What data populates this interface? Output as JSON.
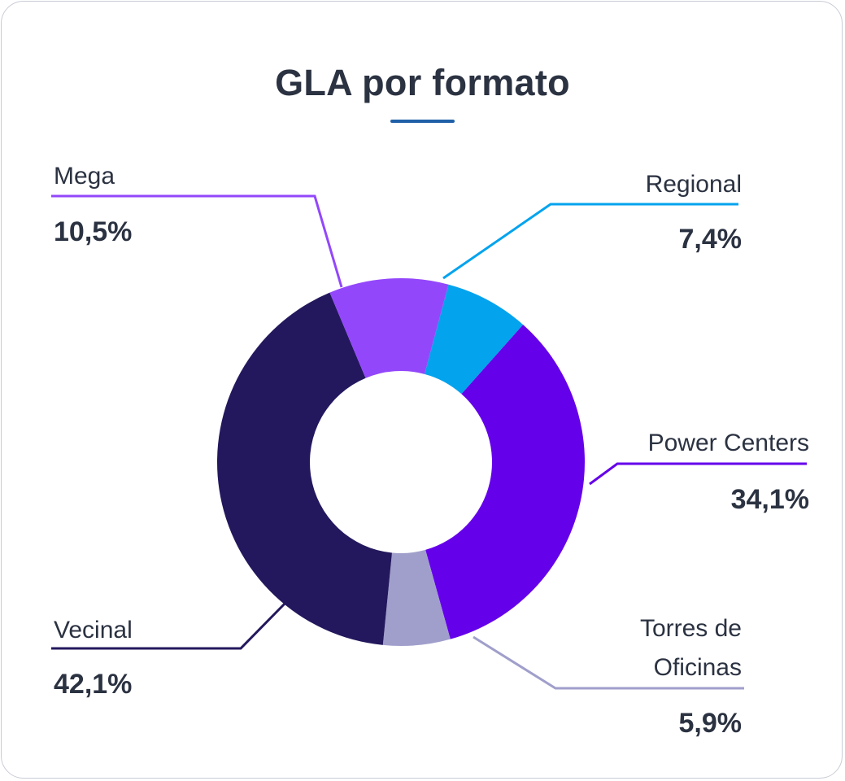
{
  "title": "GLA por formato",
  "colors": {
    "title_text": "#2b3241",
    "title_rule": "#1f5fa8",
    "border": "#c9ccd6"
  },
  "chart_data": {
    "type": "pie",
    "variant": "donut",
    "title": "GLA por formato",
    "value_suffix": "%",
    "slices": [
      {
        "label": "Regional",
        "value": 7.4,
        "display": "7,4%",
        "color": "#03a3ee"
      },
      {
        "label": "Power Centers",
        "value": 34.1,
        "display": "34,1%",
        "color": "#6500ea"
      },
      {
        "label": "Torres de Oficinas",
        "label_lines": [
          "Torres de",
          "Oficinas"
        ],
        "value": 5.9,
        "display": "5,9%",
        "color": "#a09fcb"
      },
      {
        "label": "Vecinal",
        "value": 42.1,
        "display": "42,1%",
        "color": "#23185d"
      },
      {
        "label": "Mega",
        "value": 10.5,
        "display": "10,5%",
        "color": "#9347fb"
      }
    ]
  }
}
